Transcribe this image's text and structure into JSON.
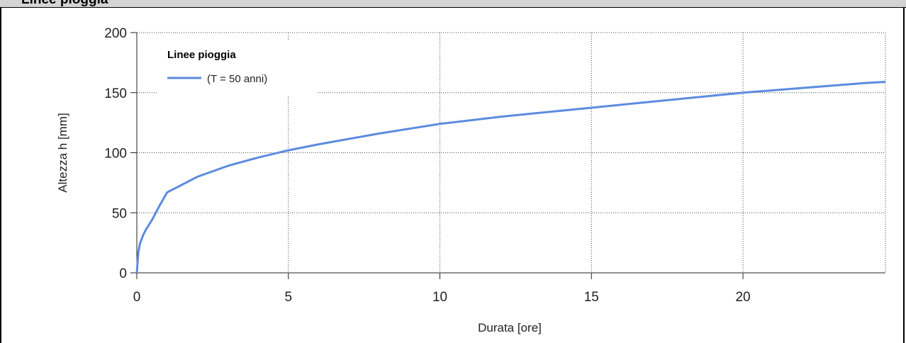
{
  "window": {
    "title": "Linee pioggia"
  },
  "chart_data": {
    "type": "line",
    "title": "",
    "xlabel": "Durata [ore]",
    "ylabel": "Altezza h [mm]",
    "xlim": [
      0,
      24.7
    ],
    "ylim": [
      0,
      200
    ],
    "x_ticks": [
      0,
      5,
      10,
      15,
      20
    ],
    "y_ticks": [
      0,
      50,
      100,
      150,
      200
    ],
    "grid": true,
    "legend": {
      "title": "Linee pioggia",
      "position": "top-left"
    },
    "series": [
      {
        "name": "(T = 50 anni)",
        "color": "#5b8be0",
        "x": [
          0,
          0.05,
          0.1,
          0.2,
          0.3,
          0.5,
          0.75,
          1,
          2,
          3,
          4,
          5,
          6,
          8,
          10,
          12,
          14,
          16,
          18,
          20,
          22,
          24,
          24.7
        ],
        "y": [
          0,
          17,
          24,
          31,
          36,
          44,
          56,
          67,
          80,
          89,
          96,
          102,
          107,
          116,
          124,
          130,
          135,
          140,
          145,
          150,
          154,
          158,
          159
        ]
      }
    ]
  }
}
